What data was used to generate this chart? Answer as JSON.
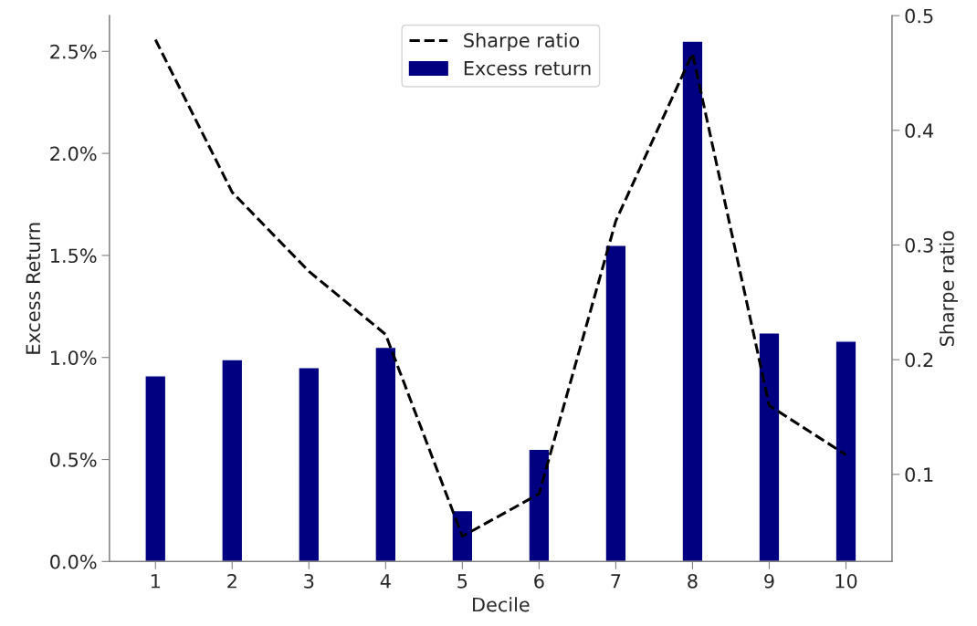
{
  "chart_data": {
    "type": "bar",
    "xlabel": "Decile",
    "ylabel": "Excess Return",
    "y2label": "Sharpe ratio",
    "categories": [
      "1",
      "2",
      "3",
      "4",
      "5",
      "6",
      "7",
      "8",
      "9",
      "10"
    ],
    "series": [
      {
        "name": "Excess return",
        "color": "#000080",
        "values": [
          0.91,
          0.99,
          0.95,
          1.05,
          0.25,
          0.55,
          1.55,
          2.55,
          1.12,
          1.08
        ]
      },
      {
        "name": "Sharpe ratio",
        "type": "line",
        "axis": "y2",
        "color": "#000000",
        "line_style": "dashed",
        "values": [
          0.479,
          0.346,
          0.277,
          0.222,
          0.046,
          0.083,
          0.321,
          0.467,
          0.16,
          0.117
        ]
      }
    ],
    "ylim": [
      0,
      2.675
    ],
    "yticks": [
      {
        "value": 0,
        "label": "0.0%"
      },
      {
        "value": 0.5,
        "label": "0.5%"
      },
      {
        "value": 1.0,
        "label": "1.0%"
      },
      {
        "value": 1.5,
        "label": "1.5%"
      },
      {
        "value": 2.0,
        "label": "2.0%"
      },
      {
        "value": 2.5,
        "label": "2.5%"
      }
    ],
    "y2lim": [
      0.024,
      0.5
    ],
    "y2ticks": [
      0.1,
      0.2,
      0.3,
      0.4,
      0.5
    ],
    "legend": "top",
    "grid": false
  }
}
